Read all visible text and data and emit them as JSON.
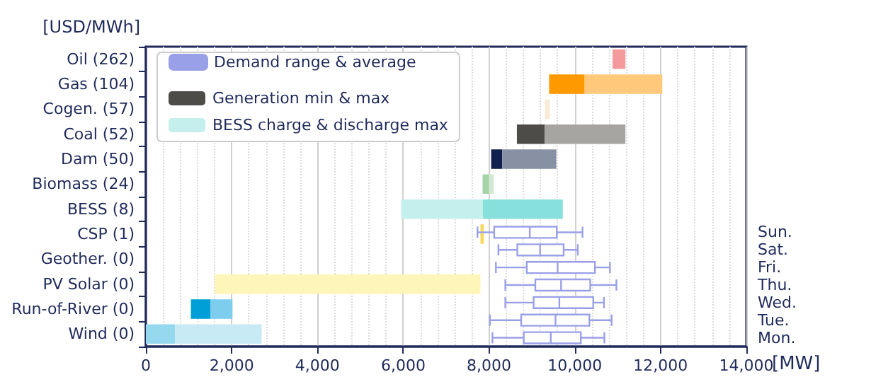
{
  "chart_data": [
    {
      "type": "bar",
      "orientation": "horizontal",
      "xlabel": "[MW]",
      "ylabel": "[USD/MWh]",
      "categories": [
        "Oil (262)",
        "Gas (104)",
        "Cogen. (57)",
        "Coal (52)",
        "Dam (50)",
        "Biomass (24)",
        "BESS (8)",
        "CSP (1)",
        "Geother. (0)",
        "PV Solar (0)",
        "Run-of-River (0)",
        "Wind (0)"
      ],
      "xlim": [
        0,
        14000
      ],
      "xticks": [
        0,
        {
          "value": 2000,
          "label": "2,000"
        },
        {
          "value": 4000,
          "label": "4,000"
        },
        {
          "value": 6000,
          "label": "6,000"
        },
        {
          "value": 8000,
          "label": "8,000"
        },
        {
          "value": 10000,
          "label": "10,000"
        },
        {
          "value": 12000,
          "label": "12,000"
        },
        {
          "value": 14000,
          "label": "14,000"
        }
      ],
      "grid": "x",
      "legend": "top left",
      "series": [
        {
          "name": "Generation min & max",
          "color": "#4e4c48",
          "base": [
            null,
            9400,
            null,
            8650,
            8050,
            7850,
            null,
            null,
            null,
            null,
            1050,
            0
          ],
          "values": [
            null,
            830,
            null,
            650,
            260,
            150,
            null,
            null,
            null,
            null,
            460,
            680
          ],
          "colors": [
            null,
            "#ff9900",
            null,
            "#4e4c48",
            "#10204f",
            "#a5d4a5",
            null,
            null,
            null,
            null,
            "#009fd8",
            "#96d8ee"
          ]
        },
        {
          "color": "#e0e0e0",
          "base": [
            10880,
            10230,
            9300,
            9300,
            8310,
            8000,
            7850,
            7800,
            null,
            1610,
            1510,
            680
          ],
          "values": [
            300,
            1810,
            120,
            1880,
            1260,
            110,
            1870,
            80,
            null,
            6190,
            510,
            2020
          ],
          "colors": [
            "#f4999c",
            "#ffc87a",
            "#f8ecd8",
            "#a6a5a2",
            "#8890a4",
            "#d0e9d0",
            "#88e0dc",
            "#f8d860",
            null,
            "#fef5b8",
            "#7ccdee",
            "#c8eaf4"
          ]
        },
        {
          "name": "BESS charge & discharge max",
          "color": "#c4efed",
          "base": [
            null,
            null,
            null,
            null,
            null,
            null,
            5950,
            null,
            null,
            null,
            null,
            null
          ],
          "values": [
            null,
            null,
            null,
            null,
            null,
            null,
            1900,
            null,
            null,
            null,
            null,
            null
          ]
        }
      ]
    },
    {
      "type": "box",
      "orientation": "horizontal",
      "categories": [
        "Sun.",
        "Sat.",
        "Fri.",
        "Thu.",
        "Wed.",
        "Tue.",
        "Mon."
      ],
      "xlim": [
        0,
        14000
      ],
      "tick_labels": "y",
      "legend": "top left",
      "series": [
        {
          "name": "Demand range & average",
          "color": "#9aa0e8",
          "boxes": [
            {
              "low": 7730,
              "q1": 8120,
              "median": 8950,
              "q3": 9580,
              "high": 10180
            },
            {
              "low": 8220,
              "q1": 8660,
              "median": 9190,
              "q3": 9740,
              "high": 10070
            },
            {
              "low": 8160,
              "q1": 8880,
              "median": 9600,
              "q3": 10470,
              "high": 10820
            },
            {
              "low": 8380,
              "q1": 9080,
              "median": 9680,
              "q3": 10360,
              "high": 10970
            },
            {
              "low": 8380,
              "q1": 9040,
              "median": 9640,
              "q3": 10430,
              "high": 10680
            },
            {
              "low": 8020,
              "q1": 8750,
              "median": 9550,
              "q3": 10340,
              "high": 10860
            },
            {
              "low": 8080,
              "q1": 8810,
              "median": 9440,
              "q3": 10140,
              "high": 10690
            }
          ]
        }
      ]
    }
  ]
}
